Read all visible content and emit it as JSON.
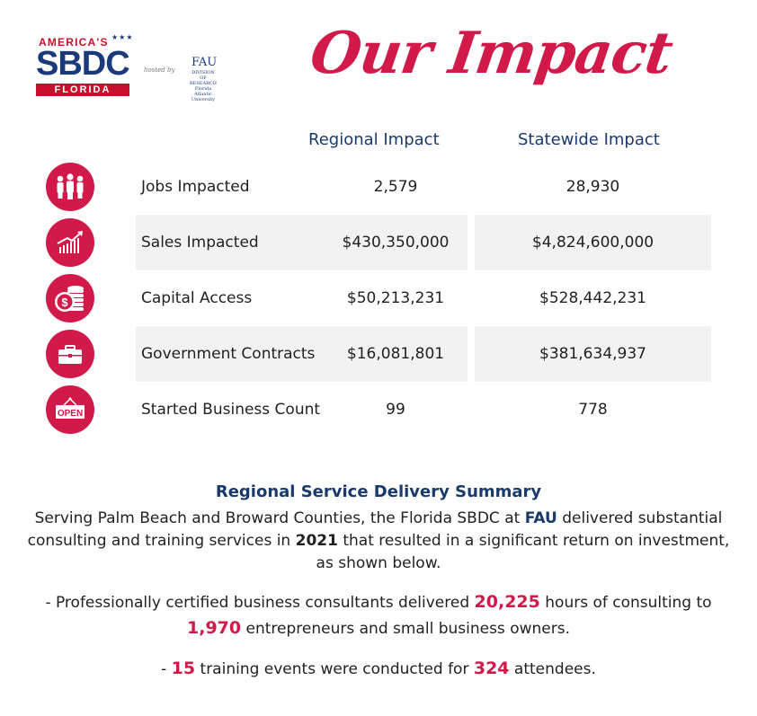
{
  "header": {
    "logo_top": "AMERICA'S",
    "logo_main": "SBDC",
    "logo_band": "FLORIDA",
    "hosted_by": "hosted by",
    "fau_text": "FAU",
    "fau_sub": "DIVISION OF RESEARCH Florida Atlantic University",
    "title": "Our Impact"
  },
  "table": {
    "col_regional": "Regional Impact",
    "col_statewide": "Statewide Impact",
    "rows": [
      {
        "label": "Jobs Impacted",
        "regional": "2,579",
        "statewide": "28,930",
        "icon": "people-icon"
      },
      {
        "label": "Sales Impacted",
        "regional": "$430,350,000",
        "statewide": "$4,824,600,000",
        "icon": "growth-chart-icon"
      },
      {
        "label": "Capital Access",
        "regional": "$50,213,231",
        "statewide": "$528,442,231",
        "icon": "coins-icon"
      },
      {
        "label": "Government Contracts",
        "regional": "$16,081,801",
        "statewide": "$381,634,937",
        "icon": "briefcase-icon"
      },
      {
        "label": "Started Business Count",
        "regional": "99",
        "statewide": "778",
        "icon": "open-sign-icon"
      }
    ],
    "open_sign_text": "OPEN"
  },
  "summary": {
    "title": "Regional Service Delivery Summary",
    "p1_a": "Serving Palm Beach and Broward Counties, the Florida SBDC at ",
    "p1_fau": "FAU",
    "p1_b": " delivered substantial consulting and training services in ",
    "p1_year": "2021",
    "p1_c": " that resulted in a significant return on investment, as shown below.",
    "b1_a": "- Professionally certified business consultants delivered ",
    "b1_hours": "20,225",
    "b1_b": " hours of consulting to ",
    "b1_people": "1,970",
    "b1_c": " entrepreneurs and small business owners.",
    "b2_a": "- ",
    "b2_events": "15",
    "b2_b": " training events were conducted for ",
    "b2_attendees": "324",
    "b2_c": " attendees."
  }
}
